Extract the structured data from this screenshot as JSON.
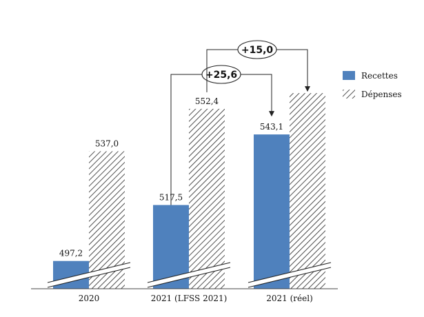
{
  "chart_data": {
    "type": "bar",
    "categories": [
      "2020",
      "2021 (LFSS 2021)",
      "2021 (réel)"
    ],
    "series": [
      {
        "name": "Recettes",
        "values": [
          497.2,
          517.5,
          543.1
        ],
        "color": "#4f81bd",
        "labels": [
          "497,2",
          "517,5",
          "543,1"
        ]
      },
      {
        "name": "Dépenses",
        "values": [
          537.0,
          552.4,
          558.1
        ],
        "pattern": "hatched",
        "labels": [
          "537,0",
          "552,4",
          ""
        ]
      }
    ],
    "y_axis": "broken",
    "legend": "right",
    "annotations": [
      {
        "text": "+25,6"
      },
      {
        "text": "+15,0"
      }
    ]
  }
}
